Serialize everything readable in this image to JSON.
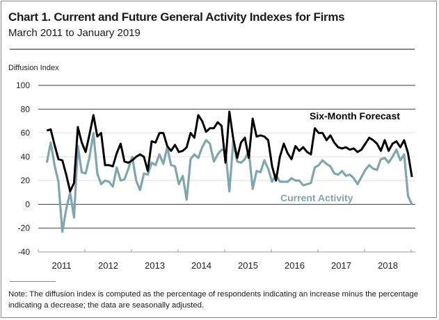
{
  "header": {
    "title": "Chart 1.  Current and Future General Activity Indexes for Firms",
    "subtitle": "March 2011 to January 2019"
  },
  "note": "Note:  The diffusion index is computed as the percentage of respondents indicating an increase minus the percentage indicating a decrease; the data are seasonally adjusted.",
  "chart_data": {
    "type": "line",
    "title": "Current and Future General Activity Indexes for Firms",
    "subtitle": "March 2011 to January 2019",
    "ylabel": "Diffusion Index",
    "xlabel": "",
    "ylim": [
      -40,
      100
    ],
    "yticks": [
      100,
      80,
      60,
      40,
      20,
      0,
      -20,
      -40
    ],
    "ytick_labels": [
      "100",
      "80",
      "60",
      "40",
      "20",
      "0",
      "-20",
      "-40"
    ],
    "xtick_labels": [
      "2011",
      "2012",
      "2013",
      "2014",
      "2015",
      "2016",
      "2017",
      "2018"
    ],
    "x_start": "2011-03",
    "x_end": "2019-01",
    "frequency": "monthly",
    "grid": true,
    "legend": "inline labels",
    "series": [
      {
        "name": "Six-Month Forecast",
        "color": "#000000",
        "label_position": "upper-right",
        "values": [
          62,
          63,
          50,
          38,
          37,
          25,
          11,
          18,
          65,
          52,
          44,
          59,
          75,
          57,
          60,
          33,
          33,
          32,
          43,
          51,
          36,
          35,
          37,
          40,
          42,
          40,
          28,
          53,
          52,
          60,
          60,
          49,
          45,
          50,
          44,
          45,
          48,
          60,
          56,
          75,
          70,
          61,
          64,
          64,
          69,
          66,
          35,
          78,
          55,
          39,
          52,
          56,
          39,
          72,
          57,
          58,
          57,
          54,
          32,
          20,
          40,
          51,
          43,
          38,
          49,
          45,
          48,
          44,
          42,
          64,
          60,
          60,
          54,
          58,
          52,
          48,
          47,
          48,
          46,
          47,
          44,
          46,
          51,
          56,
          54,
          51,
          45,
          54,
          45,
          51,
          53,
          48,
          54,
          43,
          23
        ]
      },
      {
        "name": "Current Activity",
        "color": "#7fa6ab",
        "label_position": "lower-right",
        "values": [
          35,
          52,
          33,
          19,
          -23,
          -4,
          10,
          -11,
          49,
          27,
          26,
          40,
          60,
          26,
          17,
          20,
          19,
          15,
          31,
          20,
          21,
          30,
          40,
          20,
          12,
          26,
          25,
          35,
          33,
          42,
          34,
          48,
          33,
          32,
          17,
          24,
          4,
          38,
          42,
          39,
          48,
          54,
          51,
          36,
          42,
          46,
          45,
          11,
          53,
          36,
          35,
          38,
          45,
          13,
          28,
          27,
          37,
          30,
          19,
          25,
          19,
          19,
          19,
          22,
          20,
          20,
          16,
          17,
          18,
          31,
          33,
          37,
          34,
          32,
          26,
          25,
          28,
          24,
          25,
          22,
          17,
          23,
          29,
          33,
          30,
          29,
          38,
          39,
          35,
          40,
          46,
          37,
          42,
          7,
          0
        ]
      }
    ]
  }
}
